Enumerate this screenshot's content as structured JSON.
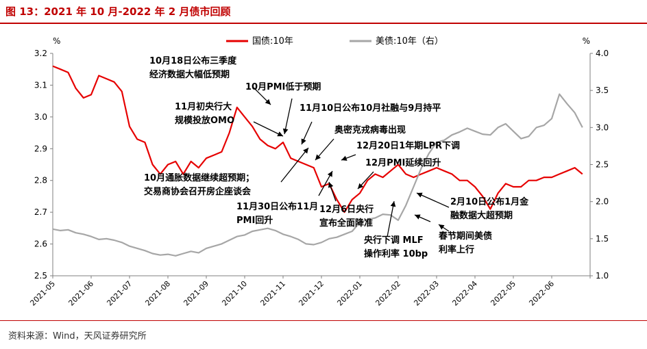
{
  "figure": {
    "title": "图 13：2021 年 10 月-2022 年 2 月债市回顾",
    "source": "资料来源：Wind，天风证券研究所"
  },
  "colors": {
    "cn": "#e60000",
    "us": "#a6a6a6",
    "brand": "#c00000",
    "annot": "#000000"
  },
  "chart_data": {
    "type": "line",
    "left_axis": {
      "unit": "%",
      "ylim": [
        2.5,
        3.2
      ],
      "ticks": [
        "2.5",
        "2.6",
        "2.7",
        "2.8",
        "2.9",
        "3.0",
        "3.1",
        "3.2"
      ]
    },
    "right_axis": {
      "unit": "%",
      "ylim": [
        1.0,
        4.0
      ],
      "ticks": [
        "1.0",
        "1.5",
        "2.0",
        "2.5",
        "3.0",
        "3.5",
        "4.0"
      ]
    },
    "x_ticks": [
      "2021-05",
      "2021-06",
      "2021-07",
      "2021-08",
      "2021-09",
      "2021-10",
      "2021-11",
      "2021-12",
      "2022-01",
      "2022-02",
      "2022-03",
      "2022-04",
      "2022-05",
      "2022-06"
    ],
    "grid": false,
    "legend_position": "top-right",
    "series": [
      {
        "name": "国债:10年",
        "axis": "left",
        "x": [
          0.0,
          0.2,
          0.4,
          0.6,
          0.8,
          1.0,
          1.2,
          1.4,
          1.6,
          1.8,
          2.0,
          2.2,
          2.4,
          2.6,
          2.8,
          3.0,
          3.2,
          3.4,
          3.6,
          3.8,
          4.0,
          4.2,
          4.4,
          4.6,
          4.8,
          5.0,
          5.2,
          5.4,
          5.6,
          5.8,
          6.0,
          6.2,
          6.4,
          6.6,
          6.8,
          7.0,
          7.2,
          7.4,
          7.6,
          7.8,
          8.0,
          8.2,
          8.4,
          8.6,
          8.8,
          9.0,
          9.2,
          9.4,
          9.6,
          9.8,
          10.0,
          10.2,
          10.4,
          10.6,
          10.8,
          11.0,
          11.2,
          11.4,
          11.6,
          11.8,
          12.0,
          12.2,
          12.4,
          12.6,
          12.8,
          13.0,
          13.2,
          13.4,
          13.6,
          13.8
        ],
        "y": [
          3.16,
          3.15,
          3.14,
          3.09,
          3.06,
          3.07,
          3.13,
          3.12,
          3.11,
          3.08,
          2.97,
          2.93,
          2.92,
          2.85,
          2.82,
          2.85,
          2.86,
          2.82,
          2.86,
          2.84,
          2.87,
          2.88,
          2.89,
          2.95,
          3.03,
          3.0,
          2.97,
          2.93,
          2.91,
          2.9,
          2.92,
          2.87,
          2.86,
          2.85,
          2.84,
          2.78,
          2.79,
          2.74,
          2.7,
          2.74,
          2.76,
          2.8,
          2.82,
          2.81,
          2.83,
          2.85,
          2.82,
          2.81,
          2.82,
          2.83,
          2.84,
          2.83,
          2.82,
          2.8,
          2.8,
          2.78,
          2.75,
          2.71,
          2.76,
          2.79,
          2.78,
          2.78,
          2.8,
          2.8,
          2.81,
          2.81,
          2.82,
          2.83,
          2.84,
          2.82
        ]
      },
      {
        "name": "美债:10年（右）",
        "axis": "right",
        "x": [
          0.0,
          0.2,
          0.4,
          0.6,
          0.8,
          1.0,
          1.2,
          1.4,
          1.6,
          1.8,
          2.0,
          2.2,
          2.4,
          2.6,
          2.8,
          3.0,
          3.2,
          3.4,
          3.6,
          3.8,
          4.0,
          4.2,
          4.4,
          4.6,
          4.8,
          5.0,
          5.2,
          5.4,
          5.6,
          5.8,
          6.0,
          6.2,
          6.4,
          6.6,
          6.8,
          7.0,
          7.2,
          7.4,
          7.6,
          7.8,
          8.0,
          8.2,
          8.4,
          8.6,
          8.8,
          9.0,
          9.2,
          9.4,
          9.6,
          9.8,
          10.0,
          10.2,
          10.4,
          10.6,
          10.8,
          11.0,
          11.2,
          11.4,
          11.6,
          11.8,
          12.0,
          12.2,
          12.4,
          12.6,
          12.8,
          13.0,
          13.2,
          13.4,
          13.6,
          13.8
        ],
        "y": [
          1.63,
          1.61,
          1.62,
          1.58,
          1.56,
          1.53,
          1.49,
          1.5,
          1.48,
          1.45,
          1.4,
          1.37,
          1.34,
          1.3,
          1.28,
          1.29,
          1.27,
          1.3,
          1.33,
          1.31,
          1.37,
          1.4,
          1.43,
          1.48,
          1.53,
          1.55,
          1.6,
          1.62,
          1.64,
          1.61,
          1.56,
          1.53,
          1.49,
          1.43,
          1.42,
          1.45,
          1.5,
          1.52,
          1.56,
          1.6,
          1.72,
          1.76,
          1.78,
          1.83,
          1.82,
          1.75,
          1.95,
          2.2,
          2.45,
          2.65,
          2.8,
          2.83,
          2.9,
          2.94,
          2.99,
          2.95,
          2.91,
          2.9,
          3.0,
          3.05,
          2.95,
          2.85,
          2.88,
          3.0,
          3.03,
          3.12,
          3.45,
          3.32,
          3.2,
          3.0
        ]
      }
    ],
    "annotations": [
      {
        "lines": [
          "10月18日公布三季度",
          "经济数据大幅低预期"
        ]
      },
      {
        "lines": [
          "10月PMI低于预期"
        ]
      },
      {
        "lines": [
          "11月初央行大",
          "规模投放OMO"
        ]
      },
      {
        "lines": [
          "11月10日公布10月社融与9月持平"
        ]
      },
      {
        "lines": [
          "奥密克戎病毒出现"
        ]
      },
      {
        "lines": [
          "12月20日1年期LPR下调"
        ]
      },
      {
        "lines": [
          "12月PMI延续回升"
        ]
      },
      {
        "lines": [
          "10月通胀数据继续超预期；",
          "交易商协会召开房企座谈会"
        ]
      },
      {
        "lines": [
          "11月30日公布11月",
          "PMI回升"
        ]
      },
      {
        "lines": [
          "12月6日央行",
          "宣布全面降准"
        ]
      },
      {
        "lines": [
          "央行下调 MLF",
          "操作利率 10bp"
        ]
      },
      {
        "lines": [
          "2月10日公布1月金",
          "融数据大超预期"
        ]
      },
      {
        "lines": [
          "春节期间美债",
          "利率上行"
        ]
      }
    ]
  }
}
